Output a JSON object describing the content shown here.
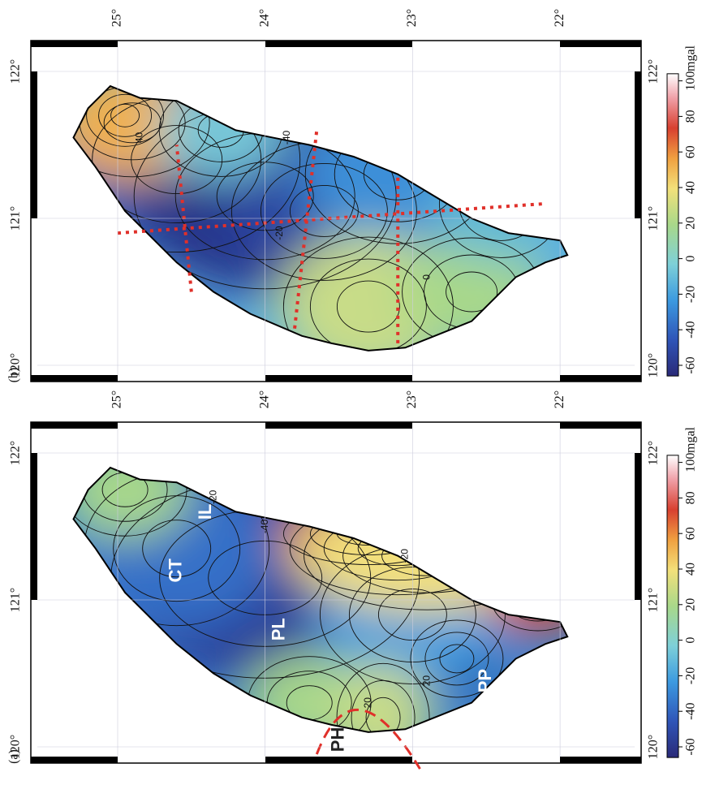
{
  "panels": [
    {
      "label": "(b)",
      "lon_ticks": [
        {
          "value": 120,
          "label": "120°"
        },
        {
          "value": 121,
          "label": "121°"
        },
        {
          "value": 122,
          "label": "122°"
        }
      ],
      "lat_ticks": [
        {
          "value": 25,
          "label": "25°"
        },
        {
          "value": 24,
          "label": "24°"
        },
        {
          "value": 23,
          "label": "23°"
        },
        {
          "value": 22,
          "label": "22°"
        }
      ],
      "contour_labels": [
        "40",
        "-40",
        "-20",
        "0"
      ],
      "colorbar": {
        "label": "mgal",
        "ticks": [
          -60,
          -40,
          -20,
          0,
          20,
          40,
          60,
          80,
          100
        ]
      }
    },
    {
      "label": "(a)",
      "lon_ticks": [
        {
          "value": 120,
          "label": "120°"
        },
        {
          "value": 121,
          "label": "121°"
        },
        {
          "value": 122,
          "label": "122°"
        }
      ],
      "lat_ticks": [
        {
          "value": 25,
          "label": "25°"
        },
        {
          "value": 24,
          "label": "24°"
        },
        {
          "value": 23,
          "label": "23°"
        },
        {
          "value": 22,
          "label": "22°"
        }
      ],
      "contour_labels": [
        "-20",
        "-40",
        "-20",
        "20",
        "20"
      ],
      "regions": [
        "IL",
        "CT",
        "PL",
        "PP",
        "PH"
      ],
      "colorbar": {
        "label": "mgal",
        "ticks": [
          -60,
          -40,
          -20,
          0,
          20,
          40,
          60,
          80,
          100
        ]
      }
    }
  ]
}
